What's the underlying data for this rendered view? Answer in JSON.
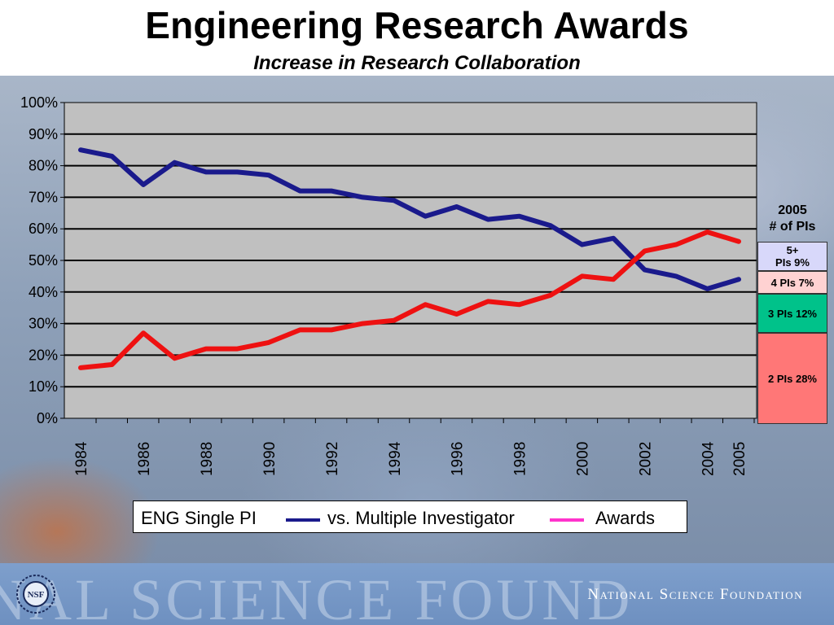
{
  "title": "Engineering Research Awards",
  "subtitle": "Increase in Research Collaboration",
  "chart_data": {
    "type": "line",
    "x": [
      1984,
      1985,
      1986,
      1987,
      1988,
      1989,
      1990,
      1991,
      1992,
      1993,
      1994,
      1995,
      1996,
      1997,
      1998,
      1999,
      2000,
      2001,
      2002,
      2003,
      2004,
      2005
    ],
    "x_tick_labels": [
      "1984",
      "1986",
      "1988",
      "1990",
      "1992",
      "1994",
      "1996",
      "1998",
      "2000",
      "2002",
      "2004",
      "2005"
    ],
    "y_tick_labels": [
      "0%",
      "10%",
      "20%",
      "30%",
      "40%",
      "50%",
      "60%",
      "70%",
      "80%",
      "90%",
      "100%"
    ],
    "ylim": [
      0,
      100
    ],
    "grid": true,
    "series": [
      {
        "name": "ENG Single PI",
        "color": "#1a1a8c",
        "values": [
          85,
          83,
          74,
          81,
          78,
          78,
          77,
          72,
          72,
          70,
          69,
          64,
          67,
          63,
          64,
          61,
          55,
          57,
          47,
          45,
          41,
          44
        ]
      },
      {
        "name": "vs. Multiple Investigator",
        "color": "#ee1111",
        "values": [
          16,
          17,
          27,
          19,
          22,
          22,
          24,
          28,
          28,
          30,
          31,
          36,
          33,
          37,
          36,
          39,
          45,
          44,
          53,
          55,
          59,
          56
        ]
      }
    ],
    "legend": {
      "position": "bottom",
      "items": [
        "ENG Single PI",
        "vs. Multiple Investigator",
        "Awards"
      ]
    },
    "legend_colors": {
      "single": "#1a1a8c",
      "multiple": "#ff33cc"
    },
    "plot_background": "#c0c0c0"
  },
  "pis_breakdown": {
    "year": "2005",
    "heading": "# of PIs",
    "segments": [
      {
        "label_line1": "5+",
        "label_line2": "PIs  9%",
        "value": 9,
        "color": "#d8d8fa"
      },
      {
        "label_line1": "4 PIs 7%",
        "label_line2": "",
        "value": 7,
        "color": "#ffd2d2"
      },
      {
        "label_line1": "3 PIs 12%",
        "label_line2": "",
        "value": 12,
        "color": "#00c28a"
      },
      {
        "label_line1": "2 PIs 28%",
        "label_line2": "",
        "value": 28,
        "color": "#ff7777"
      }
    ]
  },
  "footer": {
    "watermark": "NAL SCIENCE FOUND",
    "org": "National Science Foundation",
    "logo_text": "NSF"
  }
}
